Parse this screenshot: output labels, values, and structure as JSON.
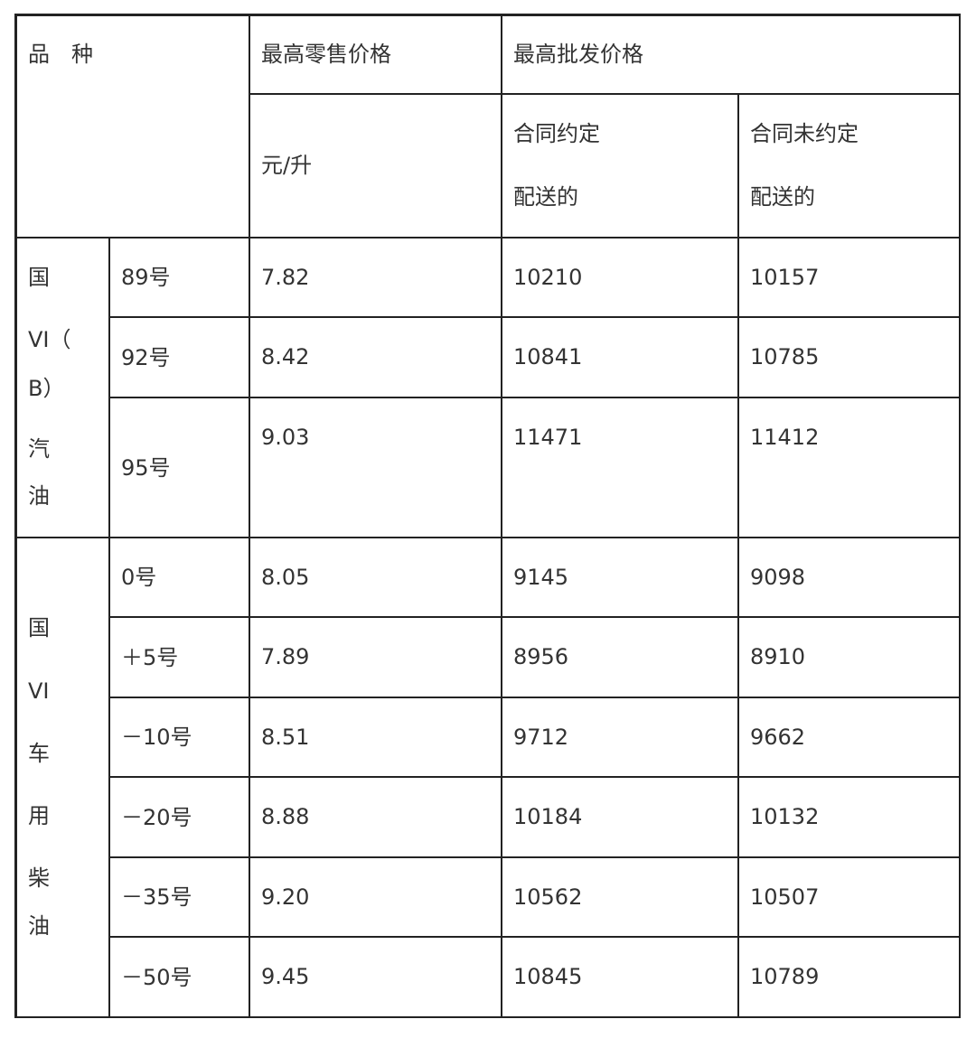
{
  "header": {
    "variety": "品　种",
    "retail": "最高零售价格",
    "retail_unit": "元/升",
    "wholesale": "最高批发价格",
    "contract_delivery": [
      "合同约定",
      "配送的"
    ],
    "no_contract_delivery": [
      "合同未约定",
      "配送的"
    ]
  },
  "groups": [
    {
      "label_lines": [
        "国",
        "VI（",
        "B）",
        "汽",
        "油"
      ],
      "rows": [
        {
          "grade": "89号",
          "retail": "7.82",
          "contract": "10210",
          "no_contract": "10157"
        },
        {
          "grade": "92号",
          "retail": "8.42",
          "contract": "10841",
          "no_contract": "10785"
        },
        {
          "grade": "95号",
          "retail": "9.03",
          "contract": "11471",
          "no_contract": "11412"
        }
      ]
    },
    {
      "label_lines": [
        "国",
        "VI",
        "车",
        "用",
        "柴",
        "油"
      ],
      "rows": [
        {
          "grade": "0号",
          "retail": "8.05",
          "contract": "9145",
          "no_contract": "9098"
        },
        {
          "grade": "＋5号",
          "retail": "7.89",
          "contract": "8956",
          "no_contract": "8910"
        },
        {
          "grade": "－10号",
          "retail": "8.51",
          "contract": "9712",
          "no_contract": "9662"
        },
        {
          "grade": "－20号",
          "retail": "8.88",
          "contract": "10184",
          "no_contract": "10132"
        },
        {
          "grade": "－35号",
          "retail": "9.20",
          "contract": "10562",
          "no_contract": "10507"
        },
        {
          "grade": "－50号",
          "retail": "9.45",
          "contract": "10845",
          "no_contract": "10789"
        }
      ]
    }
  ]
}
